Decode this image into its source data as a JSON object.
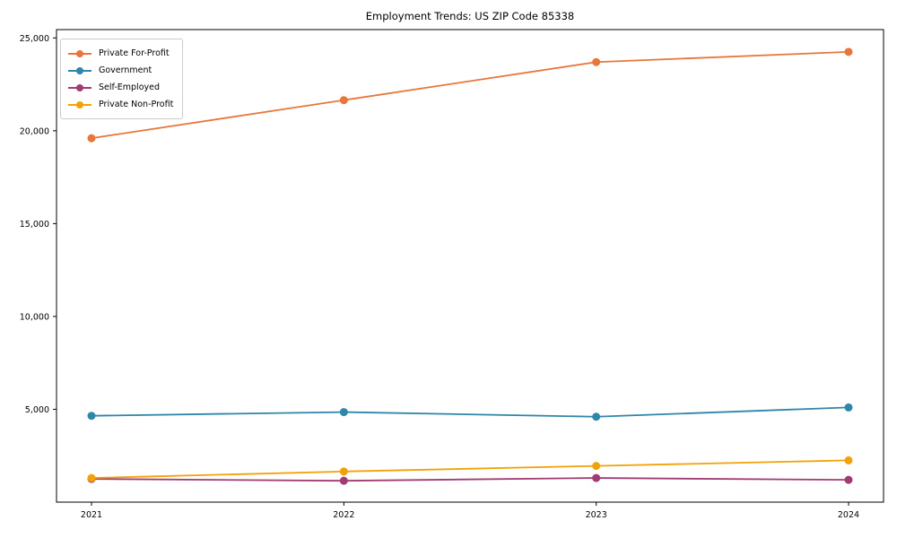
{
  "chart_data": {
    "type": "line",
    "title": "Employment Trends: US ZIP Code 85338",
    "xlabel": "",
    "ylabel": "",
    "categories": [
      "2021",
      "2022",
      "2023",
      "2024"
    ],
    "series": [
      {
        "name": "Private For-Profit",
        "color": "#E8763A",
        "values": [
          19600,
          21650,
          23700,
          24250
        ]
      },
      {
        "name": "Government",
        "color": "#2E86AB",
        "values": [
          4650,
          4850,
          4600,
          5100
        ]
      },
      {
        "name": "Self-Employed",
        "color": "#A23B72",
        "values": [
          1250,
          1150,
          1300,
          1200
        ]
      },
      {
        "name": "Private Non-Profit",
        "color": "#F1A208",
        "values": [
          1300,
          1650,
          1950,
          2250
        ]
      }
    ],
    "y_ticks": [
      {
        "value": 25000,
        "label": "25,000"
      },
      {
        "value": 20000,
        "label": "20,000"
      },
      {
        "value": 15000,
        "label": "15,000"
      },
      {
        "value": 10000,
        "label": "10,000"
      },
      {
        "value": 5000,
        "label": "5,000"
      }
    ],
    "ylim": [
      0,
      25450
    ],
    "grid": false,
    "legend_position": "upper-left",
    "axis_color": "#000000",
    "background_color": "#FFFFFF"
  }
}
